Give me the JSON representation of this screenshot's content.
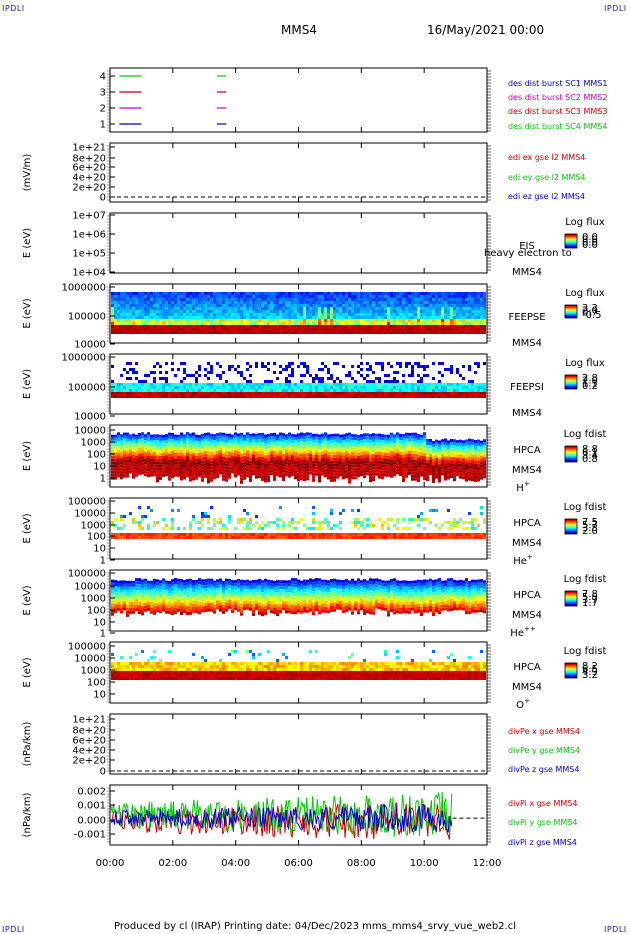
{
  "corner_labels": {
    "top_left": "IPDLI",
    "top_right": "IPDLI",
    "bottom_left": "IPDLI",
    "bottom_right": "IPDLI"
  },
  "header": {
    "spacecraft": "MMS4",
    "datetime": "16/May/2021 00:00"
  },
  "footer": {
    "text": "Produced by cl (IRAP)    Printing date: 04/Dec/2023    mms_mms4_srvy_vue_web2.cl"
  },
  "colors": {
    "blue": "#0000cc",
    "green": "#00cc00",
    "red": "#cc0000",
    "magenta": "#cc00cc"
  },
  "chart_data": {
    "type": "stacked-timeseries",
    "x_ticks": [
      "00:00",
      "02:00",
      "04:00",
      "06:00",
      "08:00",
      "10:00",
      "12:00"
    ],
    "x_range_hours": [
      0,
      12
    ],
    "panels": [
      {
        "id": "burst",
        "type": "line",
        "ylabel": "",
        "yticks": [
          "4",
          "3",
          "2",
          "1"
        ],
        "legend": [
          {
            "text": "des dist burst SC1 MMS1",
            "color": "#0000cc"
          },
          {
            "text": "des dist burst SC2 MMS2",
            "color": "#cc00cc"
          },
          {
            "text": "des dist burst SC3 MMS3",
            "color": "#cc0000"
          },
          {
            "text": "des dist burst SC4 MMS4",
            "color": "#00cc00"
          }
        ],
        "series": [
          {
            "level": 4,
            "color": "#00cc00",
            "segments": [
              [
                0.3,
                1.0
              ],
              [
                3.4,
                3.7
              ]
            ]
          },
          {
            "level": 3,
            "color": "#cc0000",
            "segments": [
              [
                0.3,
                1.0
              ],
              [
                3.4,
                3.7
              ]
            ]
          },
          {
            "level": 2,
            "color": "#cc00cc",
            "segments": [
              [
                0.3,
                1.0
              ],
              [
                3.4,
                3.7
              ]
            ]
          },
          {
            "level": 1,
            "color": "#0000cc",
            "segments": [
              [
                0.3,
                1.0
              ],
              [
                3.4,
                3.7
              ]
            ]
          }
        ]
      },
      {
        "id": "edi",
        "type": "line",
        "ylabel": "(mV/m)",
        "yticks": [
          "1e+21",
          "8e+20",
          "6e+20",
          "4e+20",
          "2e+20",
          "0"
        ],
        "legend": [
          {
            "text": "edi ex gse l2 MMS4",
            "color": "#cc0000"
          },
          {
            "text": "edi ey gse l2 MMS4",
            "color": "#00cc00"
          },
          {
            "text": "edi ez gse l2 MMS4",
            "color": "#0000cc"
          }
        ]
      },
      {
        "id": "eis",
        "type": "spectrogram",
        "ylabel": "E (eV)",
        "yticks": [
          "1e+07",
          "1e+06",
          "1e+05",
          "1e+04"
        ],
        "instrument": [
          "EIS",
          "MMS4"
        ],
        "overlay_text": "heavy electron to",
        "colorbar": {
          "title": "Log flux",
          "ticks": [
            "0.0",
            "0.0",
            "0.0",
            "0.0"
          ]
        }
      },
      {
        "id": "feepse",
        "type": "spectrogram",
        "ylabel": "E (eV)",
        "yticks": [
          "1000000",
          "100000",
          "10000"
        ],
        "instrument": [
          "FEEPSE",
          "MMS4"
        ],
        "colorbar": {
          "title": "Log flux",
          "ticks": [
            "3.3",
            "2.0",
            "0.7",
            "-0.5"
          ]
        }
      },
      {
        "id": "feepsi",
        "type": "spectrogram",
        "ylabel": "E (eV)",
        "yticks": [
          "1000000",
          "100000",
          "10000"
        ],
        "instrument": [
          "FEEPSI",
          "MMS4"
        ],
        "colorbar": {
          "title": "Log flux",
          "ticks": [
            "2.8",
            "2.0",
            "1.1",
            "0.2"
          ]
        }
      },
      {
        "id": "hpca_h",
        "type": "spectrogram",
        "ylabel": "E (eV)",
        "yticks": [
          "10000",
          "1000",
          "100",
          "10",
          "1"
        ],
        "instrument": [
          "HPCA",
          "MMS4"
        ],
        "species": "H",
        "species_sup": "+",
        "colorbar": {
          "title": "Log fdist",
          "ticks": [
            "8.8",
            "6.1",
            "3.4",
            "0.8"
          ]
        }
      },
      {
        "id": "hpca_he1",
        "type": "spectrogram",
        "ylabel": "E (eV)",
        "yticks": [
          "100000",
          "10000",
          "1000",
          "100",
          "10",
          "1"
        ],
        "instrument": [
          "HPCA",
          "MMS4"
        ],
        "species": "He",
        "species_sup": "+",
        "colorbar": {
          "title": "Log fdist",
          "ticks": [
            "7.5",
            "5.7",
            "3.8",
            "2.0"
          ]
        }
      },
      {
        "id": "hpca_he2",
        "type": "spectrogram",
        "ylabel": "E (eV)",
        "yticks": [
          "100000",
          "10000",
          "1000",
          "100",
          "10",
          "1"
        ],
        "instrument": [
          "HPCA",
          "MMS4"
        ],
        "species": "He",
        "species_sup": "++",
        "colorbar": {
          "title": "Log fdist",
          "ticks": [
            "7.8",
            "5.8",
            "3.7",
            "1.7"
          ]
        }
      },
      {
        "id": "hpca_o",
        "type": "spectrogram",
        "ylabel": "E (eV)",
        "yticks": [
          "100000",
          "10000",
          "1000",
          "100",
          "10"
        ],
        "instrument": [
          "HPCA",
          "MMS4"
        ],
        "species": "O",
        "species_sup": "+",
        "colorbar": {
          "title": "Log fdist",
          "ticks": [
            "8.2",
            "6.5",
            "4.9",
            "3.2"
          ]
        }
      },
      {
        "id": "divpe",
        "type": "line",
        "ylabel": "(nPa/km)",
        "yticks": [
          "1e+21",
          "8e+20",
          "6e+20",
          "4e+20",
          "2e+20",
          "0"
        ],
        "legend": [
          {
            "text": "divPe x gse MMS4",
            "color": "#cc0000"
          },
          {
            "text": "divPe y gse MMS4",
            "color": "#00cc00"
          },
          {
            "text": "divPe z gse MMS4",
            "color": "#0000cc"
          }
        ]
      },
      {
        "id": "divpi",
        "type": "line",
        "ylabel": "(nPa/km)",
        "yticks": [
          "0.002",
          "0.001",
          "0.000",
          "-0.001"
        ],
        "ylim": [
          -0.0017,
          0.0021
        ],
        "data_end_hours": 10.9,
        "legend": [
          {
            "text": "divPi x gse MMS4",
            "color": "#cc0000"
          },
          {
            "text": "divPi y gse MMS4",
            "color": "#00cc00"
          },
          {
            "text": "divPi z gse MMS4",
            "color": "#0000cc"
          }
        ]
      }
    ]
  }
}
